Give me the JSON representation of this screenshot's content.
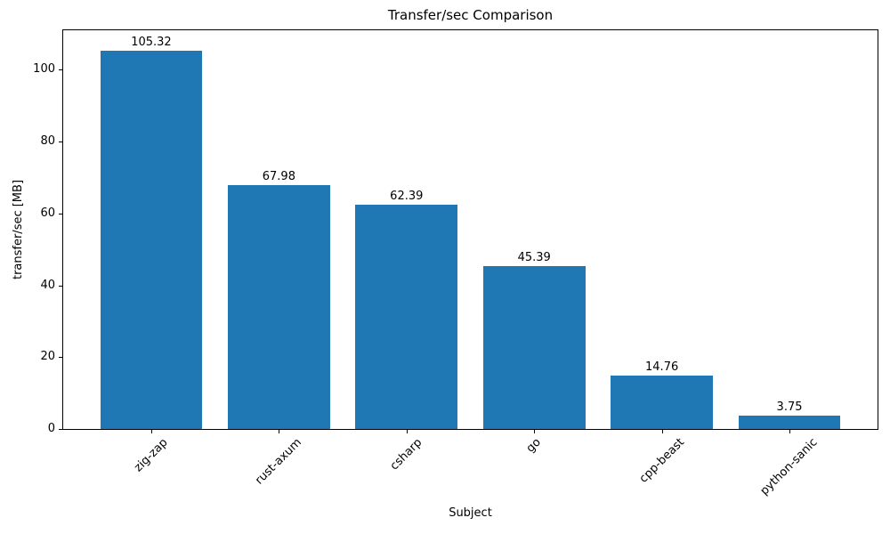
{
  "chart_data": {
    "type": "bar",
    "title": "Transfer/sec Comparison",
    "xlabel": "Subject",
    "ylabel": "transfer/sec [MB]",
    "categories": [
      "zig-zap",
      "rust-axum",
      "csharp",
      "go",
      "cpp-beast",
      "python-sanic"
    ],
    "values": [
      105.32,
      67.98,
      62.39,
      45.39,
      14.76,
      3.75
    ],
    "bar_value_labels": [
      "105.32",
      "67.98",
      "62.39",
      "45.39",
      "14.76",
      "3.75"
    ],
    "yticks": [
      0,
      20,
      40,
      60,
      80,
      100
    ],
    "ytick_labels": [
      "0",
      "20",
      "40",
      "60",
      "80",
      "100"
    ],
    "ylim": [
      0,
      111
    ],
    "xtick_rotation_deg": 45,
    "grid": false,
    "legend": "none",
    "colors": {
      "bar": "#1f77b4",
      "text": "#000000",
      "axes": "#000000",
      "background": "#ffffff"
    }
  }
}
